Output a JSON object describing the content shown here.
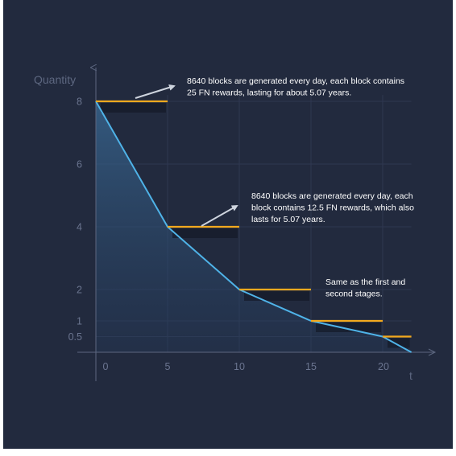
{
  "chart_data": {
    "type": "line",
    "xlabel": "t",
    "ylabel": "Quantity",
    "x_ticks": [
      0,
      5,
      10,
      15,
      20
    ],
    "y_ticks": [
      0.5,
      1,
      2,
      4,
      6,
      8
    ],
    "y_tick_labels": [
      "0.5",
      "1",
      "2",
      "4",
      "6",
      "8"
    ],
    "xlim": [
      -0.5,
      22
    ],
    "ylim": [
      0,
      9
    ],
    "series": [
      {
        "kind": "curve",
        "points": [
          [
            0,
            8
          ],
          [
            5,
            4
          ],
          [
            10,
            2
          ],
          [
            15,
            1
          ],
          [
            20,
            0.5
          ],
          [
            22,
            0
          ]
        ]
      }
    ],
    "steps": [
      {
        "x_start": 0,
        "x_end": 5,
        "y": 8
      },
      {
        "x_start": 5,
        "x_end": 10,
        "y": 4
      },
      {
        "x_start": 10,
        "x_end": 15,
        "y": 2
      },
      {
        "x_start": 15,
        "x_end": 20,
        "y": 1
      },
      {
        "x_start": 20,
        "x_end": 22,
        "y": 0.5
      }
    ],
    "annotations": [
      {
        "lines": [
          "8640 blocks are generated every day, each block contains",
          "25 FN rewards, lasting for about 5.07 years."
        ],
        "arrow": true
      },
      {
        "lines": [
          "8640 blocks are generated every day, each",
          "block contains 12.5 FN rewards, which also",
          "lasts for 5.07 years."
        ],
        "arrow": true
      },
      {
        "lines": [
          "Same as the first and",
          "second stages."
        ],
        "arrow": false
      }
    ],
    "colors": {
      "background": "#222a3e",
      "curve": "#4fb3e8",
      "steps": "#f2a91e",
      "axes": "#5d6780",
      "text": "#ffffff"
    }
  }
}
